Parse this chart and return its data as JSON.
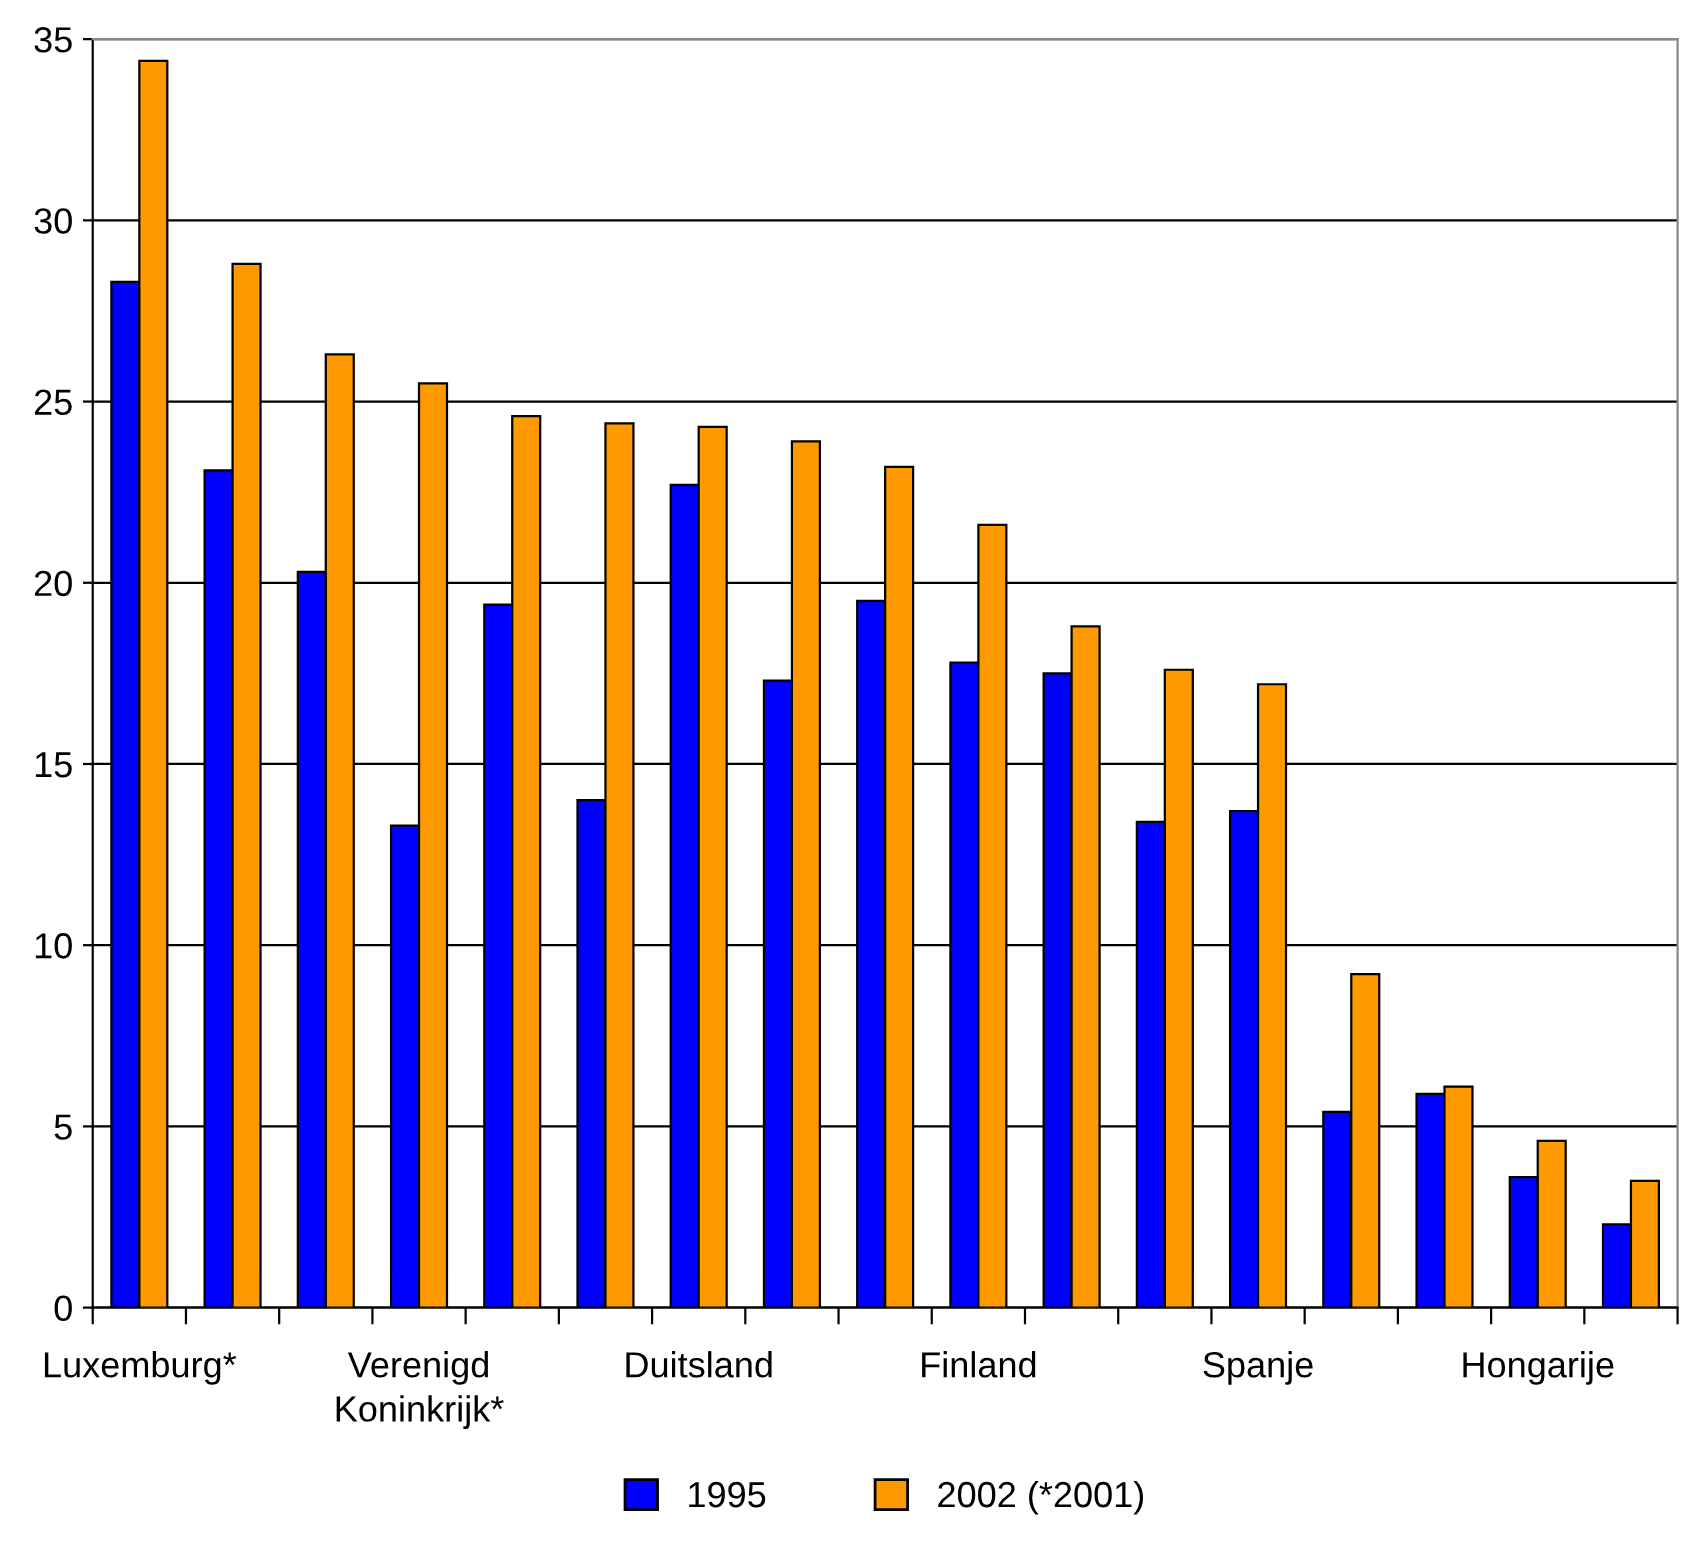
{
  "chart_data": {
    "type": "bar",
    "categories": [
      "Luxemburg*",
      null,
      null,
      "Verenigd\nKoninkrijk*",
      null,
      null,
      "Duitsland",
      null,
      null,
      "Finland",
      null,
      null,
      "Spanje",
      null,
      null,
      "Hongarije",
      null
    ],
    "series": [
      {
        "name": "1995",
        "color": "#0000ff",
        "values": [
          28.3,
          23.1,
          20.3,
          13.3,
          19.4,
          14.0,
          22.7,
          17.3,
          19.5,
          17.8,
          17.5,
          13.4,
          13.7,
          5.4,
          5.9,
          3.6,
          2.3
        ]
      },
      {
        "name": "2002 (*2001)",
        "color": "#ff9900",
        "values": [
          34.4,
          28.8,
          26.3,
          25.5,
          24.6,
          24.4,
          24.3,
          23.9,
          23.2,
          21.6,
          18.8,
          17.6,
          17.2,
          9.2,
          6.1,
          4.6,
          3.5
        ]
      }
    ],
    "ylim": [
      0,
      35
    ],
    "yticks": [
      0,
      5,
      10,
      15,
      20,
      25,
      30,
      35
    ],
    "grid": "y",
    "legend": "bottom"
  }
}
